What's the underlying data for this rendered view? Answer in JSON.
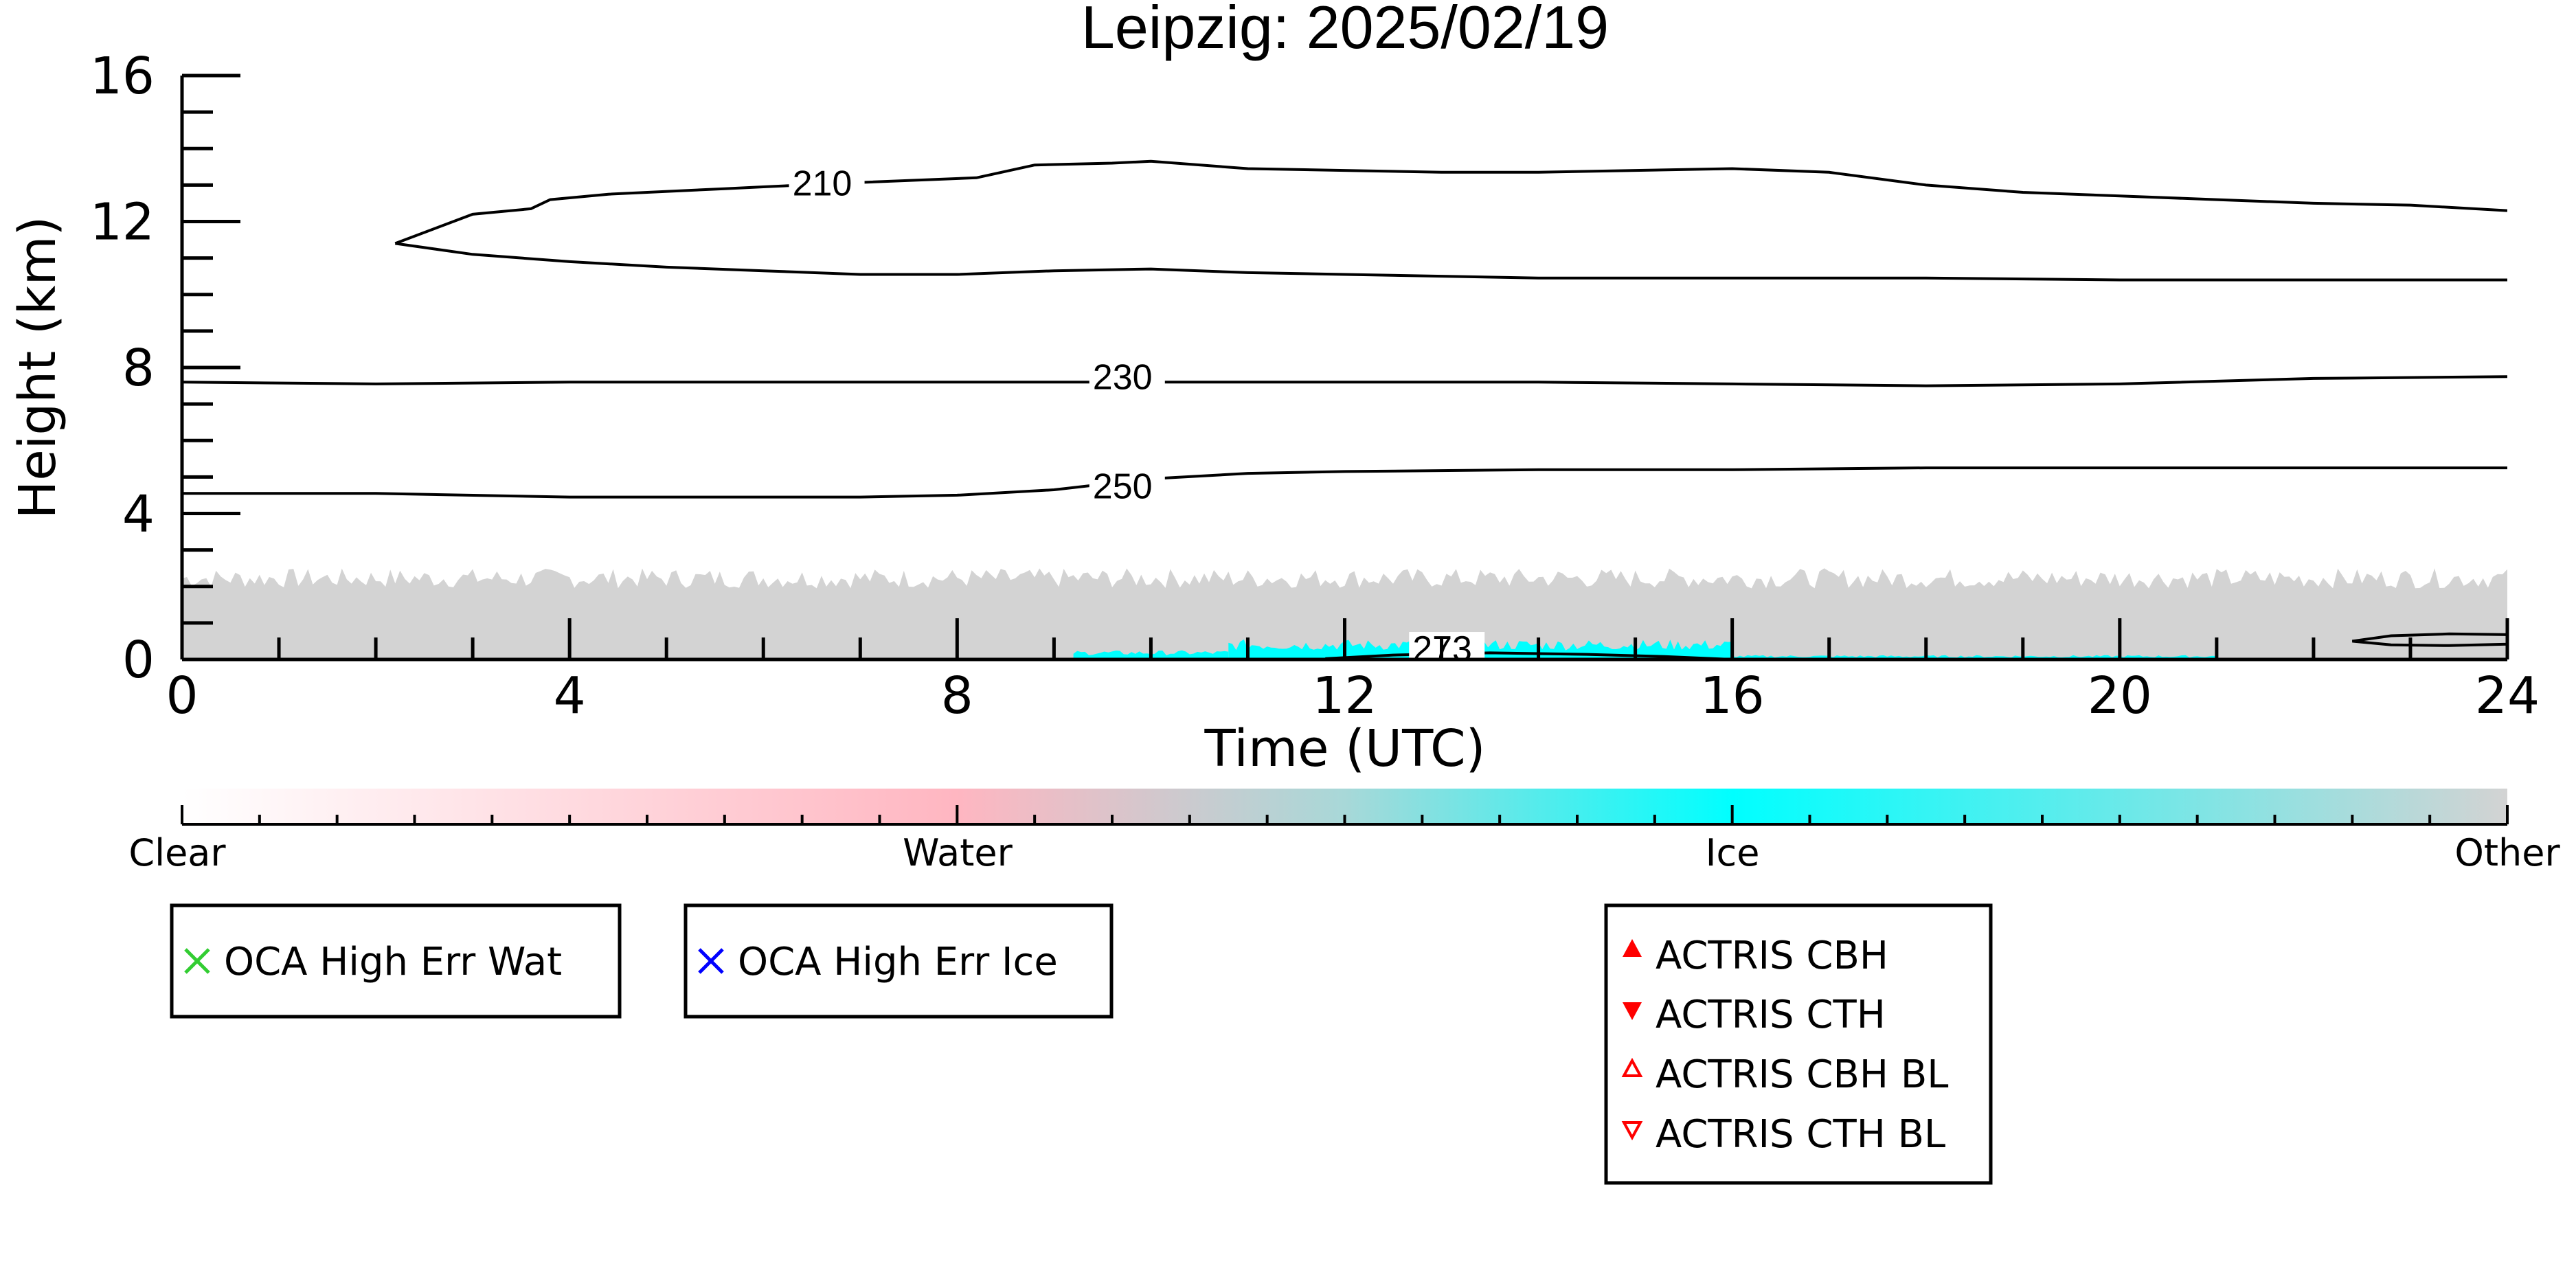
{
  "colors": {
    "axis": "#000000",
    "other": "#d3d3d3",
    "ice": "#00ffff",
    "water": "#ffb6c1",
    "clear": "#ffffff",
    "contour": "#000000",
    "oca_water_marker": "#32cd32",
    "oca_ice_marker": "#0000ff",
    "actris_marker": "#ff0000"
  },
  "chart_data": {
    "type": "heatmap",
    "title": "Leipzig: 2025/02/19",
    "xlabel": "Time (UTC)",
    "ylabel": "Height (km)",
    "xlim": [
      0,
      24
    ],
    "ylim": [
      0,
      16
    ],
    "xticks": [
      0,
      4,
      8,
      12,
      16,
      20,
      24
    ],
    "yticks": [
      0,
      4,
      8,
      12,
      16
    ],
    "grid": false,
    "classification": {
      "other": {
        "x": [
          0,
          24
        ],
        "top_height_km": 2.3
      },
      "ice_patches": [
        {
          "x": [
            9.2,
            10.8
          ],
          "height_km": [
            0.0,
            0.25
          ]
        },
        {
          "x": [
            10.8,
            16.0
          ],
          "height_km": [
            0.0,
            0.55
          ]
        },
        {
          "x": [
            16.0,
            21.0
          ],
          "height_km": [
            0.0,
            0.12
          ]
        }
      ]
    },
    "contours": [
      {
        "label": "210",
        "label_at": [
          6.3,
          12.9
        ],
        "upper": {
          "x": [
            2.2,
            2.6,
            3.0,
            3.6,
            3.8,
            4.4,
            5.6,
            6.0,
            6.8,
            8.2,
            8.8,
            9.6,
            10.0,
            11.0,
            12.0,
            13.0,
            14.0,
            15.0,
            16.0,
            17.0,
            18.0,
            19.0,
            20.0,
            21.0,
            22.0,
            23.0,
            24.0
          ],
          "y": [
            11.4,
            11.8,
            12.2,
            12.35,
            12.6,
            12.75,
            12.9,
            12.95,
            13.05,
            13.2,
            13.55,
            13.6,
            13.65,
            13.45,
            13.4,
            13.35,
            13.35,
            13.4,
            13.45,
            13.35,
            13.0,
            12.8,
            12.7,
            12.6,
            12.5,
            12.45,
            12.3
          ]
        },
        "lower": {
          "x": [
            2.2,
            3.0,
            4.0,
            5.0,
            6.0,
            7.0,
            8.0,
            9.0,
            10.0,
            11.0,
            12.0,
            14.0,
            16.0,
            18.0,
            20.0,
            22.0,
            24.0
          ],
          "y": [
            11.4,
            11.1,
            10.9,
            10.75,
            10.65,
            10.55,
            10.55,
            10.65,
            10.7,
            10.6,
            10.55,
            10.45,
            10.45,
            10.45,
            10.4,
            10.4,
            10.4
          ]
        }
      },
      {
        "label": "230",
        "label_at": [
          9.4,
          7.6
        ],
        "x": [
          0,
          2,
          4,
          6,
          8,
          10,
          12,
          14,
          16,
          18,
          20,
          22,
          24
        ],
        "y": [
          7.6,
          7.55,
          7.6,
          7.6,
          7.6,
          7.6,
          7.6,
          7.6,
          7.55,
          7.5,
          7.55,
          7.7,
          7.75
        ]
      },
      {
        "label": "250",
        "label_at": [
          9.4,
          4.6
        ],
        "x": [
          0,
          2,
          4,
          6,
          7,
          8,
          9,
          10,
          11,
          12,
          14,
          16,
          18,
          20,
          22,
          24
        ],
        "y": [
          4.55,
          4.55,
          4.45,
          4.45,
          4.45,
          4.5,
          4.65,
          4.95,
          5.1,
          5.15,
          5.2,
          5.2,
          5.25,
          5.25,
          5.25,
          5.25
        ]
      },
      {
        "label": "273",
        "label_at": [
          12.7,
          0.15
        ],
        "x": [
          11.8,
          12.5,
          13.5,
          14.5,
          15.3,
          16.0
        ],
        "y": [
          0.02,
          0.12,
          0.18,
          0.14,
          0.08,
          0.0
        ]
      },
      {
        "label": "",
        "closed": true,
        "x": [
          22.4,
          22.8,
          23.4,
          24.0,
          24.0,
          23.4,
          22.8,
          22.4
        ],
        "y": [
          0.5,
          0.65,
          0.7,
          0.68,
          0.42,
          0.38,
          0.4,
          0.5
        ]
      }
    ],
    "colorbar": {
      "labels": [
        "Clear",
        "Water",
        "Ice",
        "Other"
      ],
      "positions": [
        0,
        0.333,
        0.667,
        1.0
      ]
    }
  },
  "legends": {
    "oca": [
      {
        "label": "OCA High Err Wat",
        "marker": "x",
        "color": "#32cd32"
      },
      {
        "label": "OCA High Err Ice",
        "marker": "x",
        "color": "#0000ff"
      }
    ],
    "actris": [
      {
        "label": "ACTRIS CBH",
        "marker": "triangle-up-filled"
      },
      {
        "label": "ACTRIS CTH",
        "marker": "triangle-down-filled"
      },
      {
        "label": "ACTRIS CBH BL",
        "marker": "triangle-up-open"
      },
      {
        "label": "ACTRIS CTH BL",
        "marker": "triangle-down-open"
      }
    ]
  }
}
